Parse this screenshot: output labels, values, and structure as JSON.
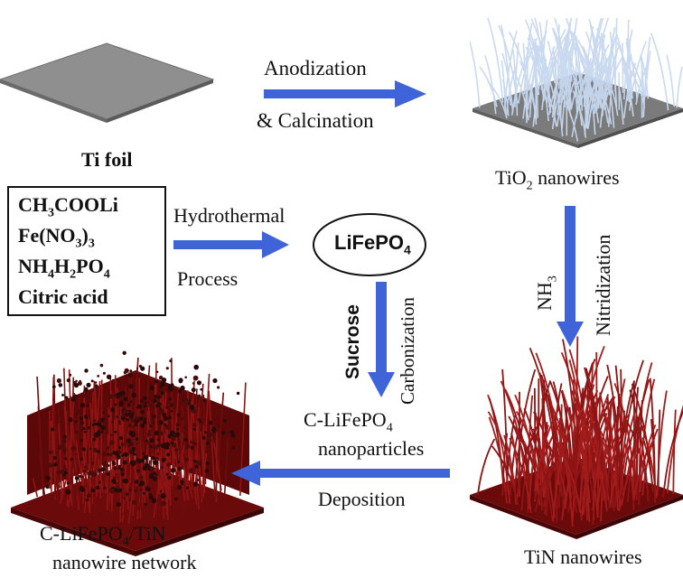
{
  "diagram": {
    "ti_foil": "Ti foil",
    "step1": {
      "line1": "Anodization",
      "line2": "& Calcination"
    },
    "tio2_label": {
      "prefix": "TiO",
      "sub": "2",
      "suffix": " nanowires"
    },
    "step_nitridization": {
      "reagent_main": "NH",
      "reagent_sub": "3",
      "process": "Nitridization"
    },
    "tin_label": "TiN nanowires",
    "precursors": {
      "line1": {
        "a": "CH",
        "a_sub": "3",
        "b": "COOLi"
      },
      "line2": {
        "a": "Fe(NO",
        "a_sub": "3",
        "b": ")",
        "b_sub": "3"
      },
      "line3": {
        "a": "NH",
        "a_sub": "4",
        "b": "H",
        "b_sub": "2",
        "c": "PO",
        "c_sub": "4"
      },
      "line4": "Citric acid"
    },
    "step_hydrothermal": {
      "line1": "Hydrothermal",
      "line2": "Process"
    },
    "lifepo4": {
      "text": "LiFePO",
      "sub": "4"
    },
    "step_carbonization": {
      "reagent": "Sucrose",
      "process": "Carbonization"
    },
    "c_lifepo4_label": {
      "line1_prefix": "C-LiFePO",
      "line1_sub": "4",
      "line2": "nanoparticles"
    },
    "step_deposition": "Deposition",
    "final_label": {
      "line1_prefix": "C-LiFePO",
      "line1_sub": "4",
      "line1_suffix": "/TiN",
      "line2": "nanowire network"
    }
  },
  "colors": {
    "arrow_blue": "#3f63d8",
    "foil_gray": "#8f8f8f",
    "tio2_wire": "#c7d8ef",
    "tin_red": "#7a0d0d",
    "lifepo4_particle": "#2a0a08"
  }
}
